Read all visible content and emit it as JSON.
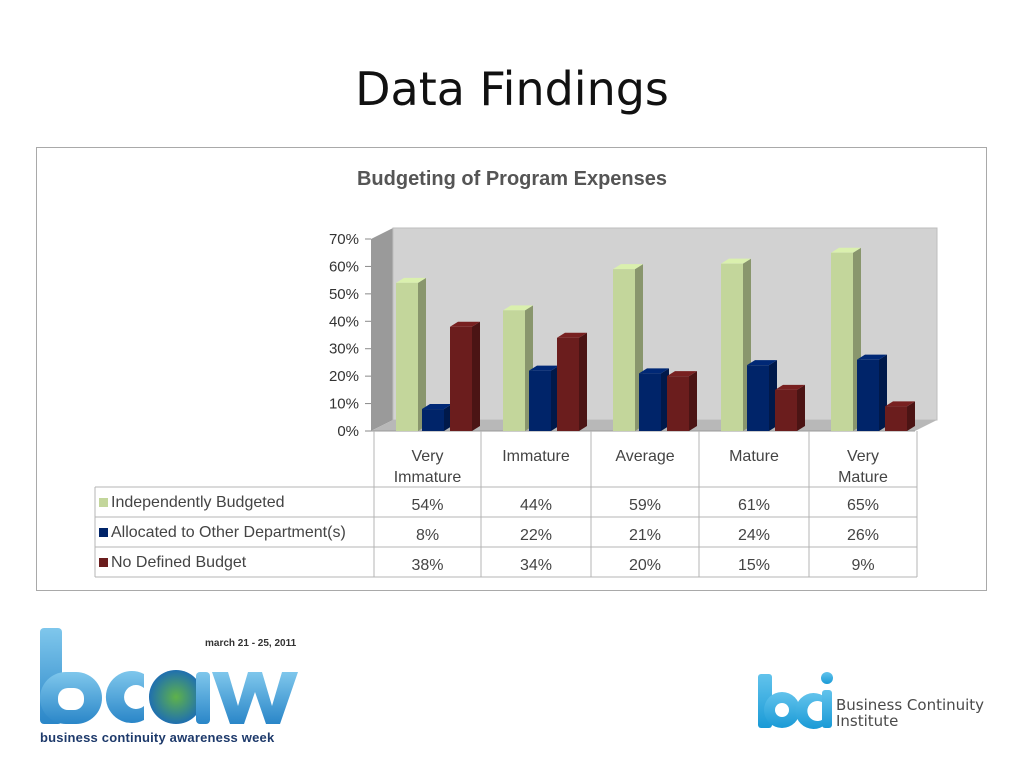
{
  "slide": {
    "title": "Data Findings"
  },
  "chart_data": {
    "type": "bar",
    "title": "Budgeting of Program Expenses",
    "categories": [
      "Very Immature",
      "Immature",
      "Average",
      "Mature",
      "Very Mature"
    ],
    "category_lines": [
      [
        "Very",
        "Immature"
      ],
      [
        "Immature"
      ],
      [
        "Average"
      ],
      [
        "Mature"
      ],
      [
        "Very",
        "Mature"
      ]
    ],
    "series": [
      {
        "name": "Independently Budgeted",
        "values": [
          54,
          44,
          59,
          61,
          65
        ],
        "labels": [
          "54%",
          "44%",
          "59%",
          "61%",
          "65%"
        ],
        "color": "#c3d69b"
      },
      {
        "name": "Allocated to Other Department(s)",
        "values": [
          8,
          22,
          21,
          24,
          26
        ],
        "labels": [
          "8%",
          "22%",
          "21%",
          "24%",
          "26%"
        ],
        "color": "#002469"
      },
      {
        "name": "No Defined Budget",
        "values": [
          38,
          34,
          20,
          15,
          9
        ],
        "labels": [
          "38%",
          "34%",
          "20%",
          "15%",
          "9%"
        ],
        "color": "#6b1d1d"
      }
    ],
    "yticks": [
      "0%",
      "10%",
      "20%",
      "30%",
      "40%",
      "50%",
      "60%",
      "70%"
    ],
    "ylim": [
      0,
      70
    ],
    "grid": false,
    "legend": "data-table"
  },
  "logos": {
    "bcaw": {
      "date": "march 21 - 25, 2011",
      "tagline": "business continuity awareness week"
    },
    "bci": {
      "line1": "Business Continuity",
      "line2": "Institute"
    }
  }
}
